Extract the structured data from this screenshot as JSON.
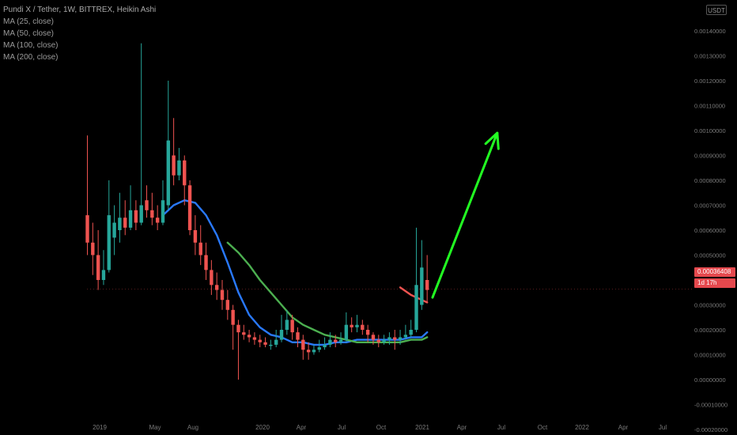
{
  "legend": {
    "title": "Pundi X / Tether, 1W, BITTREX, Heikin Ashi",
    "studies": [
      "MA (25, close)",
      "MA (50, close)",
      "MA (100, close)",
      "MA (200, close)"
    ]
  },
  "price_axis": {
    "currency_label": "USDT",
    "current_price_label": "0.00036408",
    "countdown_label": "1d 17h"
  },
  "colors": {
    "background": "#000000",
    "up_candle": "#26a69a",
    "down_candle": "#ef5350",
    "ma_blue": "#2979ff",
    "ma_green": "#4caf50",
    "ma_red": "#ef5350",
    "arrow": "#22ff22"
  },
  "chart_data": {
    "type": "candlestick",
    "ylim": [
      -0.00025,
      0.00155
    ],
    "y_ticks": [
      "0.00140000",
      "0.00130000",
      "0.00120000",
      "0.00110000",
      "0.00100000",
      "0.00090000",
      "0.00080000",
      "0.00070000",
      "0.00060000",
      "0.00050000",
      "0.00040000",
      "0.00030000",
      "0.00020000",
      "0.00010000",
      "0.00000000",
      "-0.00010000",
      "-0.00020000"
    ],
    "x_ticks": [
      "2019",
      "May",
      "Aug",
      "2020",
      "Apr",
      "Jul",
      "Oct",
      "2021",
      "Apr",
      "Jul",
      "Oct",
      "2022",
      "Apr",
      "Jul"
    ],
    "candles": [
      {
        "t": "2019-01",
        "o": 0.00066,
        "c": 0.00055,
        "h": 0.00098,
        "l": 0.0005
      },
      {
        "t": "2019-01",
        "o": 0.00055,
        "c": 0.0005,
        "h": 0.00063,
        "l": 0.00042
      },
      {
        "t": "2019-01",
        "o": 0.0005,
        "c": 0.0004,
        "h": 0.0006,
        "l": 0.00036
      },
      {
        "t": "2019-02",
        "o": 0.0004,
        "c": 0.00044,
        "h": 0.00052,
        "l": 0.00038
      },
      {
        "t": "2019-02",
        "o": 0.00044,
        "c": 0.00066,
        "h": 0.0008,
        "l": 0.00043
      },
      {
        "t": "2019-02",
        "o": 0.00057,
        "c": 0.00063,
        "h": 0.0007,
        "l": 0.0005
      },
      {
        "t": "2019-03",
        "o": 0.0006,
        "c": 0.00065,
        "h": 0.00075,
        "l": 0.00055
      },
      {
        "t": "2019-03",
        "o": 0.00065,
        "c": 0.00061,
        "h": 0.00072,
        "l": 0.00058
      },
      {
        "t": "2019-03",
        "o": 0.00061,
        "c": 0.00068,
        "h": 0.00078,
        "l": 0.0006
      },
      {
        "t": "2019-04",
        "o": 0.00068,
        "c": 0.00063,
        "h": 0.00072,
        "l": 0.0006
      },
      {
        "t": "2019-04",
        "o": 0.00063,
        "c": 0.0007,
        "h": 0.00135,
        "l": 0.00062
      },
      {
        "t": "2019-04",
        "o": 0.00072,
        "c": 0.00068,
        "h": 0.00078,
        "l": 0.00065
      },
      {
        "t": "2019-05",
        "o": 0.00068,
        "c": 0.00065,
        "h": 0.00075,
        "l": 0.00062
      },
      {
        "t": "2019-05",
        "o": 0.00065,
        "c": 0.00063,
        "h": 0.0007,
        "l": 0.0006
      },
      {
        "t": "2019-05",
        "o": 0.00063,
        "c": 0.00072,
        "h": 0.0008,
        "l": 0.00062
      },
      {
        "t": "2019-05",
        "o": 0.0007,
        "c": 0.00096,
        "h": 0.0012,
        "l": 0.00068
      },
      {
        "t": "2019-06",
        "o": 0.0009,
        "c": 0.00082,
        "h": 0.00105,
        "l": 0.00078
      },
      {
        "t": "2019-06",
        "o": 0.00082,
        "c": 0.00088,
        "h": 0.00093,
        "l": 0.0008
      },
      {
        "t": "2019-06",
        "o": 0.00088,
        "c": 0.00078,
        "h": 0.0009,
        "l": 0.0007
      },
      {
        "t": "2019-07",
        "o": 0.00078,
        "c": 0.0006,
        "h": 0.0008,
        "l": 0.00058
      },
      {
        "t": "2019-07",
        "o": 0.0006,
        "c": 0.00055,
        "h": 0.00066,
        "l": 0.0005
      },
      {
        "t": "2019-07",
        "o": 0.00055,
        "c": 0.0005,
        "h": 0.00062,
        "l": 0.00046
      },
      {
        "t": "2019-08",
        "o": 0.0005,
        "c": 0.00044,
        "h": 0.00055,
        "l": 0.0004
      },
      {
        "t": "2019-08",
        "o": 0.00044,
        "c": 0.00038,
        "h": 0.00048,
        "l": 0.00034
      },
      {
        "t": "2019-08",
        "o": 0.00038,
        "c": 0.00036,
        "h": 0.00043,
        "l": 0.00032
      },
      {
        "t": "2019-09",
        "o": 0.00036,
        "c": 0.00032,
        "h": 0.0004,
        "l": 0.00028
      },
      {
        "t": "2019-09",
        "o": 0.00032,
        "c": 0.00028,
        "h": 0.00036,
        "l": 0.00024
      },
      {
        "t": "2019-09",
        "o": 0.00028,
        "c": 0.00022,
        "h": 0.0003,
        "l": 0.00012
      },
      {
        "t": "2019-10",
        "o": 0.00022,
        "c": 0.00019,
        "h": 0.00024,
        "l": 0.0
      },
      {
        "t": "2019-10",
        "o": 0.00019,
        "c": 0.00018,
        "h": 0.00022,
        "l": 0.00016
      },
      {
        "t": "2019-10",
        "o": 0.00018,
        "c": 0.00017,
        "h": 0.0002,
        "l": 0.00015
      },
      {
        "t": "2019-11",
        "o": 0.00017,
        "c": 0.00016,
        "h": 0.00019,
        "l": 0.00014
      },
      {
        "t": "2019-11",
        "o": 0.00016,
        "c": 0.00015,
        "h": 0.00018,
        "l": 0.00013
      },
      {
        "t": "2019-11",
        "o": 0.00015,
        "c": 0.00014,
        "h": 0.00017,
        "l": 0.00013
      },
      {
        "t": "2019-12",
        "o": 0.00014,
        "c": 0.00014,
        "h": 0.00016,
        "l": 0.00012
      },
      {
        "t": "2019-12",
        "o": 0.00014,
        "c": 0.00016,
        "h": 0.0002,
        "l": 0.00013
      },
      {
        "t": "2020-01",
        "o": 0.00016,
        "c": 0.0002,
        "h": 0.00026,
        "l": 0.00015
      },
      {
        "t": "2020-01",
        "o": 0.0002,
        "c": 0.00024,
        "h": 0.00028,
        "l": 0.00018
      },
      {
        "t": "2020-02",
        "o": 0.00024,
        "c": 0.00019,
        "h": 0.00026,
        "l": 0.00016
      },
      {
        "t": "2020-02",
        "o": 0.00019,
        "c": 0.00016,
        "h": 0.00021,
        "l": 0.00013
      },
      {
        "t": "2020-03",
        "o": 0.00016,
        "c": 0.00012,
        "h": 0.00018,
        "l": 8e-05
      },
      {
        "t": "2020-03",
        "o": 0.00012,
        "c": 0.00011,
        "h": 0.00015,
        "l": 8e-05
      },
      {
        "t": "2020-04",
        "o": 0.00011,
        "c": 0.00012,
        "h": 0.00014,
        "l": 0.0001
      },
      {
        "t": "2020-04",
        "o": 0.00012,
        "c": 0.00013,
        "h": 0.00016,
        "l": 0.00011
      },
      {
        "t": "2020-05",
        "o": 0.00013,
        "c": 0.00014,
        "h": 0.00017,
        "l": 0.00012
      },
      {
        "t": "2020-05",
        "o": 0.00014,
        "c": 0.00016,
        "h": 0.00019,
        "l": 0.00013
      },
      {
        "t": "2020-06",
        "o": 0.00016,
        "c": 0.00015,
        "h": 0.00018,
        "l": 0.00013
      },
      {
        "t": "2020-06",
        "o": 0.00015,
        "c": 0.00016,
        "h": 0.00019,
        "l": 0.00014
      },
      {
        "t": "2020-07",
        "o": 0.00016,
        "c": 0.00022,
        "h": 0.00027,
        "l": 0.00015
      },
      {
        "t": "2020-07",
        "o": 0.00022,
        "c": 0.00021,
        "h": 0.00025,
        "l": 0.00019
      },
      {
        "t": "2020-08",
        "o": 0.00021,
        "c": 0.00022,
        "h": 0.00026,
        "l": 0.00019
      },
      {
        "t": "2020-08",
        "o": 0.00022,
        "c": 0.0002,
        "h": 0.00024,
        "l": 0.00018
      },
      {
        "t": "2020-09",
        "o": 0.0002,
        "c": 0.00018,
        "h": 0.00022,
        "l": 0.00015
      },
      {
        "t": "2020-09",
        "o": 0.00018,
        "c": 0.00016,
        "h": 0.00019,
        "l": 0.00014
      },
      {
        "t": "2020-10",
        "o": 0.00016,
        "c": 0.00015,
        "h": 0.00018,
        "l": 0.00013
      },
      {
        "t": "2020-10",
        "o": 0.00015,
        "c": 0.00016,
        "h": 0.00018,
        "l": 0.00014
      },
      {
        "t": "2020-11",
        "o": 0.00016,
        "c": 0.00017,
        "h": 0.00019,
        "l": 0.00014
      },
      {
        "t": "2020-11",
        "o": 0.00017,
        "c": 0.00016,
        "h": 0.0002,
        "l": 0.00012
      },
      {
        "t": "2020-12",
        "o": 0.00016,
        "c": 0.00017,
        "h": 0.0002,
        "l": 0.00014
      },
      {
        "t": "2020-12",
        "o": 0.00017,
        "c": 0.00018,
        "h": 0.00022,
        "l": 0.00016
      },
      {
        "t": "2021-01",
        "o": 0.00018,
        "c": 0.0002,
        "h": 0.00024,
        "l": 0.00017
      },
      {
        "t": "2021-01",
        "o": 0.0002,
        "c": 0.00038,
        "h": 0.00061,
        "l": 0.00019
      },
      {
        "t": "2021-01",
        "o": 0.0003,
        "c": 0.00045,
        "h": 0.00056,
        "l": 0.00028
      },
      {
        "t": "2021-01",
        "o": 0.0004,
        "c": 0.00036,
        "h": 0.0005,
        "l": 0.00031
      }
    ],
    "series": [
      {
        "name": "MA (25, close)",
        "color": "#2979ff",
        "points": [
          [
            14,
            0.00066
          ],
          [
            16,
            0.0007
          ],
          [
            18,
            0.00072
          ],
          [
            20,
            0.00071
          ],
          [
            22,
            0.00066
          ],
          [
            24,
            0.00058
          ],
          [
            26,
            0.00047
          ],
          [
            28,
            0.00035
          ],
          [
            30,
            0.00026
          ],
          [
            32,
            0.00021
          ],
          [
            34,
            0.00018
          ],
          [
            36,
            0.00017
          ],
          [
            38,
            0.00015
          ],
          [
            40,
            0.00015
          ],
          [
            42,
            0.00014
          ],
          [
            44,
            0.00014
          ],
          [
            46,
            0.00015
          ],
          [
            48,
            0.00015
          ],
          [
            50,
            0.00016
          ],
          [
            52,
            0.00016
          ],
          [
            54,
            0.00016
          ],
          [
            56,
            0.00016
          ],
          [
            58,
            0.00016
          ],
          [
            60,
            0.00017
          ],
          [
            62,
            0.00017
          ],
          [
            63,
            0.00019
          ]
        ]
      },
      {
        "name": "MA (50, close)",
        "color": "#4caf50",
        "points": [
          [
            26,
            0.00055
          ],
          [
            28,
            0.00051
          ],
          [
            30,
            0.00046
          ],
          [
            32,
            0.0004
          ],
          [
            34,
            0.00035
          ],
          [
            36,
            0.0003
          ],
          [
            38,
            0.00025
          ],
          [
            40,
            0.00022
          ],
          [
            42,
            0.0002
          ],
          [
            44,
            0.00018
          ],
          [
            46,
            0.00017
          ],
          [
            48,
            0.00016
          ],
          [
            50,
            0.00015
          ],
          [
            52,
            0.00015
          ],
          [
            54,
            0.00015
          ],
          [
            56,
            0.00015
          ],
          [
            58,
            0.00015
          ],
          [
            60,
            0.00016
          ],
          [
            62,
            0.00016
          ],
          [
            63,
            0.00017
          ]
        ]
      },
      {
        "name": "MA (100, close)",
        "color": "#ef5350",
        "points": [
          [
            58,
            0.00037
          ],
          [
            60,
            0.00034
          ],
          [
            62,
            0.00032
          ],
          [
            63,
            0.00031
          ]
        ]
      }
    ],
    "annotation": {
      "type": "arrow",
      "color": "#22ff22",
      "from": [
        64,
        0.00033
      ],
      "to": [
        76,
        0.00099
      ]
    }
  }
}
